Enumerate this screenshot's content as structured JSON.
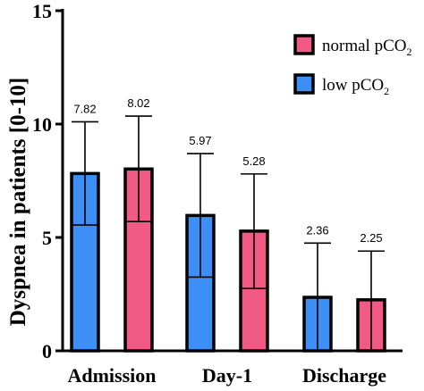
{
  "chart_data": {
    "type": "bar",
    "categories": [
      "Admission",
      "Day-1",
      "Discharge"
    ],
    "ylabel": "Dyspnea in patients [0-10]",
    "ylim": [
      0,
      15
    ],
    "yticks": [
      0,
      5,
      10,
      15
    ],
    "grid": false,
    "legend_position": "top-right",
    "series": [
      {
        "name": "low pCO2",
        "legend_main": "low pCO",
        "legend_sub": "2",
        "color": "#3d8ff5",
        "values": [
          7.82,
          5.97,
          2.36
        ],
        "labels": [
          "7.82",
          "5.97",
          "2.36"
        ],
        "error_upper": [
          10.1,
          8.7,
          4.75
        ],
        "error_lower": [
          5.55,
          3.25,
          0
        ]
      },
      {
        "name": "normal pCO2",
        "legend_main": "normal pCO",
        "legend_sub": "2",
        "color": "#f25a86",
        "values": [
          8.02,
          5.28,
          2.25
        ],
        "labels": [
          "8.02",
          "5.28",
          "2.25"
        ],
        "error_upper": [
          10.35,
          7.8,
          4.4
        ],
        "error_lower": [
          5.7,
          2.75,
          0
        ]
      }
    ],
    "legend_order": [
      1,
      0
    ]
  }
}
